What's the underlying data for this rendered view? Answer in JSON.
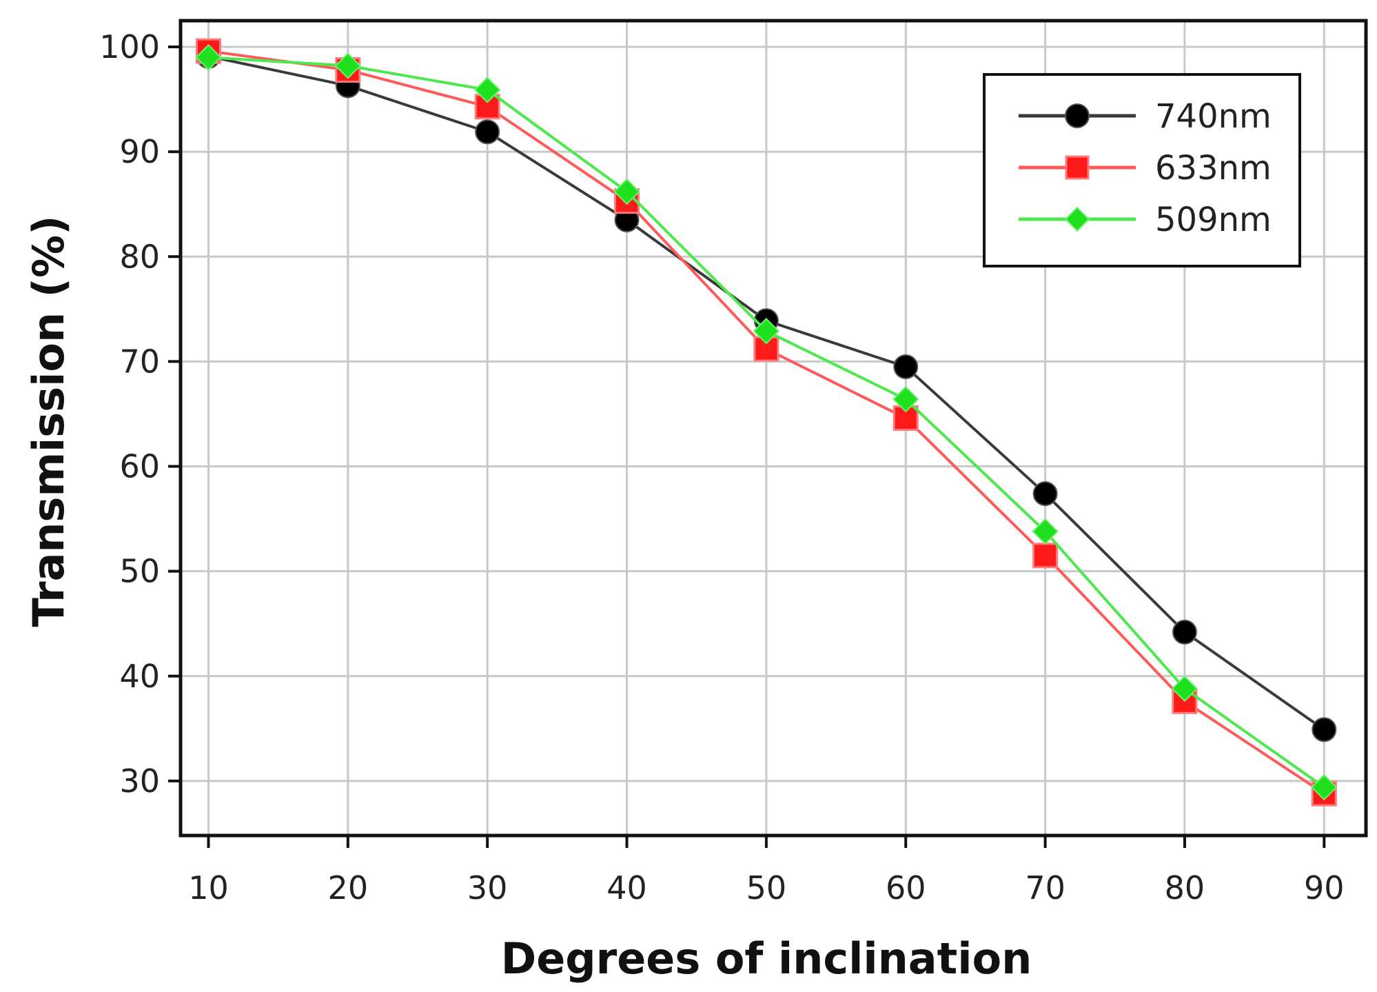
{
  "chart_data": {
    "type": "line",
    "title": "",
    "xlabel": "Degrees of inclination",
    "ylabel": "Transmission (%)",
    "x": [
      10,
      20,
      30,
      40,
      50,
      60,
      70,
      80,
      90
    ],
    "xlim": [
      8,
      93
    ],
    "ylim": [
      24.8,
      102.5
    ],
    "xticks": [
      10,
      20,
      30,
      40,
      50,
      60,
      70,
      80,
      90
    ],
    "yticks": [
      30,
      40,
      50,
      60,
      70,
      80,
      90,
      100
    ],
    "grid": true,
    "legend_position": "top-right",
    "series": [
      {
        "name": "740nm",
        "color": "#000000",
        "line_color": "#3a3a3a",
        "marker": "circle",
        "values": [
          99.1,
          96.3,
          91.9,
          83.5,
          73.9,
          69.5,
          57.4,
          44.2,
          34.9
        ]
      },
      {
        "name": "633nm",
        "color": "#ff1a1a",
        "line_color": "#ff5a5a",
        "marker": "square",
        "values": [
          99.6,
          97.8,
          94.3,
          85.3,
          71.2,
          64.6,
          51.5,
          37.6,
          28.8
        ]
      },
      {
        "name": "509nm",
        "color": "#1fe01f",
        "line_color": "#4de84d",
        "marker": "diamond",
        "values": [
          99.0,
          98.2,
          95.9,
          86.2,
          72.9,
          66.4,
          53.8,
          38.8,
          29.4
        ]
      }
    ]
  }
}
